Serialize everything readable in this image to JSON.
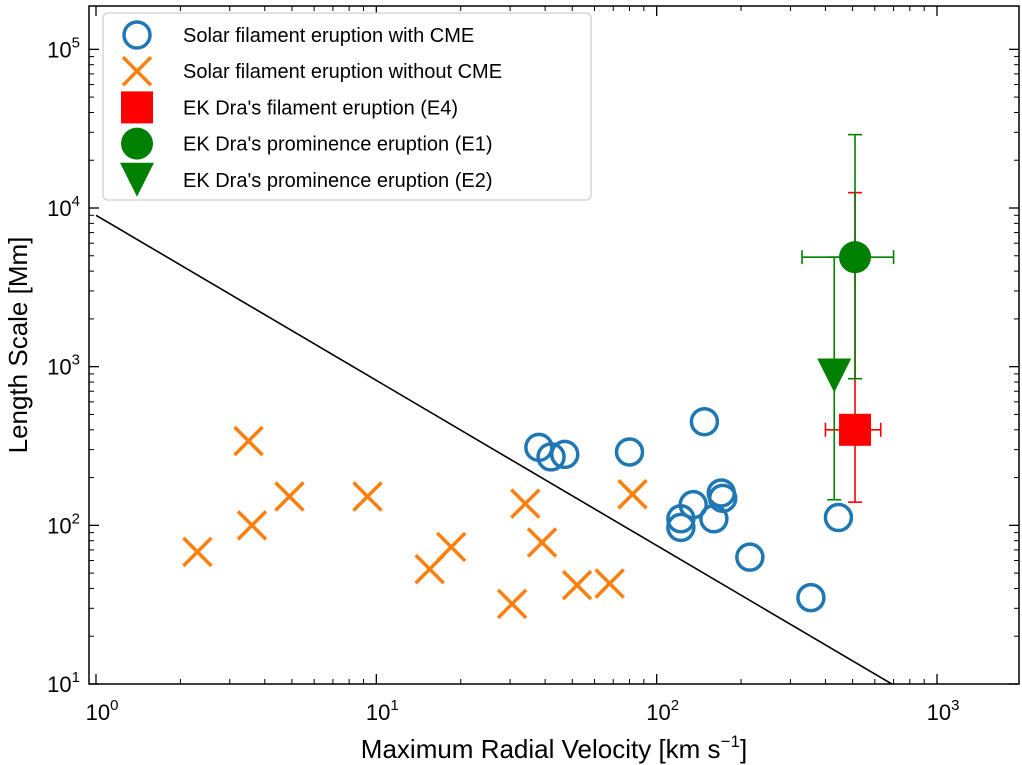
{
  "chart_data": {
    "type": "scatter",
    "x_scale": "log",
    "y_scale": "log",
    "xlim": [
      1,
      2000
    ],
    "ylim": [
      10,
      200000
    ],
    "xlabel": "Maximum Radial Velocity [km s",
    "xlabel_sup": "−1",
    "xlabel_end": "]",
    "ylabel": "Length Scale [Mm]",
    "x_major_ticks": [
      {
        "value": 1,
        "base": "10",
        "exp": "0"
      },
      {
        "value": 10,
        "base": "10",
        "exp": "1"
      },
      {
        "value": 100,
        "base": "10",
        "exp": "2"
      },
      {
        "value": 1000,
        "base": "10",
        "exp": "3"
      }
    ],
    "y_major_ticks": [
      {
        "value": 10,
        "base": "10",
        "exp": "1"
      },
      {
        "value": 100,
        "base": "10",
        "exp": "2"
      },
      {
        "value": 1000,
        "base": "10",
        "exp": "3"
      },
      {
        "value": 10000,
        "base": "10",
        "exp": "4"
      },
      {
        "value": 100000,
        "base": "10",
        "exp": "5"
      }
    ],
    "legend_position": "top-left",
    "colors": {
      "solar_cme": "#1f77b4",
      "solar_no_cme": "#ff7f0e",
      "ek_e4": "#ff0000",
      "ek_e1": "#008000",
      "ek_e2": "#008000",
      "line": "#000000"
    },
    "reference_line": {
      "name": "boundary",
      "points": [
        [
          1,
          9000
        ],
        [
          690,
          10
        ]
      ]
    },
    "series": [
      {
        "name": "Solar filament eruption with CME",
        "marker": "open-circle",
        "color": "#1f77b4",
        "points": [
          [
            38,
            310
          ],
          [
            42,
            270
          ],
          [
            47,
            280
          ],
          [
            80,
            290
          ],
          [
            148,
            450
          ],
          [
            122,
            110
          ],
          [
            122,
            97
          ],
          [
            135,
            135
          ],
          [
            170,
            160
          ],
          [
            172,
            148
          ],
          [
            160,
            110
          ],
          [
            215,
            63
          ],
          [
            355,
            35
          ],
          [
            445,
            112
          ]
        ]
      },
      {
        "name": "Solar filament eruption without CME",
        "marker": "x",
        "color": "#ff7f0e",
        "points": [
          [
            2.3,
            68
          ],
          [
            3.5,
            340
          ],
          [
            3.6,
            100
          ],
          [
            4.9,
            152
          ],
          [
            9.3,
            152
          ],
          [
            15.5,
            53
          ],
          [
            18.5,
            73
          ],
          [
            30.5,
            32
          ],
          [
            34,
            137
          ],
          [
            39,
            78
          ],
          [
            52,
            42
          ],
          [
            68,
            43
          ],
          [
            82,
            157
          ]
        ]
      },
      {
        "name": "EK Dra's filament eruption (E4)",
        "marker": "square",
        "color": "#ff0000",
        "points": [
          [
            510,
            400
          ]
        ],
        "xerr": [
          [
            400,
            630
          ]
        ],
        "yerr": [
          [
            140,
            12500
          ]
        ]
      },
      {
        "name": "EK Dra's prominence eruption (E1)",
        "marker": "filled-circle",
        "color": "#008000",
        "points": [
          [
            510,
            4900
          ]
        ],
        "xerr": [
          [
            330,
            700
          ]
        ],
        "yerr": [
          [
            840,
            29000
          ]
        ]
      },
      {
        "name": "EK Dra's prominence eruption (E2)",
        "marker": "triangle-down",
        "color": "#008000",
        "points": [
          [
            430,
            880
          ]
        ],
        "yerr": [
          [
            145,
            4900
          ]
        ]
      }
    ]
  }
}
